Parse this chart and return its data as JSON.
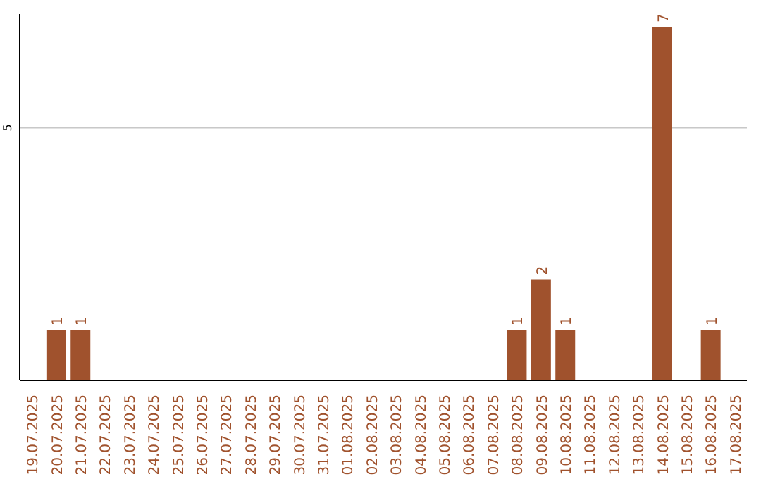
{
  "chart_data": {
    "type": "bar",
    "categories": [
      "19.07.2025",
      "20.07.2025",
      "21.07.2025",
      "22.07.2025",
      "23.07.2025",
      "24.07.2025",
      "25.07.2025",
      "26.07.2025",
      "27.07.2025",
      "28.07.2025",
      "29.07.2025",
      "30.07.2025",
      "31.07.2025",
      "01.08.2025",
      "02.08.2025",
      "03.08.2025",
      "04.08.2025",
      "05.08.2025",
      "06.08.2025",
      "07.08.2025",
      "08.08.2025",
      "09.08.2025",
      "10.08.2025",
      "11.08.2025",
      "12.08.2025",
      "13.08.2025",
      "14.08.2025",
      "15.08.2025",
      "16.08.2025",
      "17.08.2025"
    ],
    "values": [
      0,
      1,
      1,
      0,
      0,
      0,
      0,
      0,
      0,
      0,
      0,
      0,
      0,
      0,
      0,
      0,
      0,
      0,
      0,
      0,
      1,
      2,
      1,
      0,
      0,
      0,
      7,
      0,
      1,
      0
    ],
    "value_labels": [
      null,
      "1",
      "1",
      null,
      null,
      null,
      null,
      null,
      null,
      null,
      null,
      null,
      null,
      null,
      null,
      null,
      null,
      null,
      null,
      null,
      "1",
      "2",
      "1",
      null,
      null,
      null,
      "7",
      null,
      "1",
      null
    ],
    "color": "#a0522d",
    "ylim": [
      0,
      7.25
    ],
    "yticks": [
      5
    ],
    "grid": "y"
  }
}
